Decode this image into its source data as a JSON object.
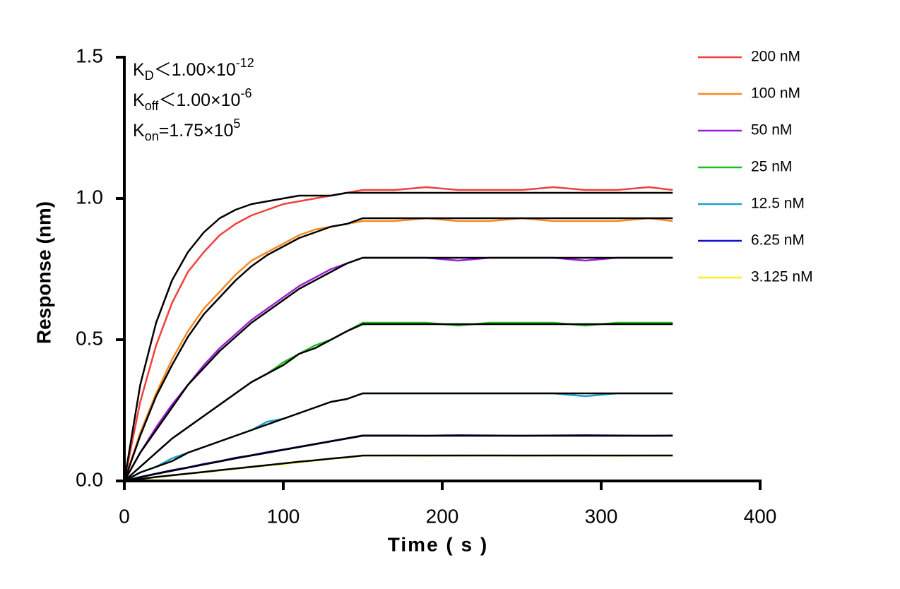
{
  "chart_data": {
    "type": "line",
    "xlabel": "Time ( s )",
    "ylabel": "Response (nm)",
    "annotations": [
      {
        "main": "K",
        "sub": "D",
        "text": "＜1.00×10",
        "sup": "-12"
      },
      {
        "main": "K",
        "sub": "off",
        "text": "＜1.00×10",
        "sup": "-6"
      },
      {
        "main": "K",
        "sub": "on",
        "text": "=1.75×10",
        "sup": "5"
      }
    ],
    "xlim": [
      0,
      400
    ],
    "xticks": [
      0,
      100,
      200,
      300,
      400
    ],
    "ylim": [
      0,
      1.5
    ],
    "yticks": [
      {
        "value": 0,
        "label": "0.0"
      },
      0.5,
      {
        "value": 1,
        "label": "1.0"
      },
      1.5
    ],
    "fit_color": "#000000",
    "x": [
      0,
      10,
      20,
      30,
      40,
      50,
      60,
      70,
      80,
      90,
      100,
      110,
      120,
      130,
      140,
      150,
      170,
      190,
      210,
      230,
      250,
      270,
      290,
      310,
      330,
      345
    ],
    "series": [
      {
        "name": "200 nM",
        "color": "#f0413c",
        "values": [
          0,
          0.28,
          0.48,
          0.63,
          0.74,
          0.81,
          0.87,
          0.91,
          0.94,
          0.96,
          0.98,
          0.99,
          1.0,
          1.01,
          1.02,
          1.03,
          1.03,
          1.04,
          1.03,
          1.03,
          1.03,
          1.04,
          1.03,
          1.03,
          1.04,
          1.03
        ],
        "fit_values": [
          0,
          0.34,
          0.56,
          0.71,
          0.81,
          0.88,
          0.93,
          0.96,
          0.98,
          0.99,
          1.0,
          1.01,
          1.01,
          1.01,
          1.02,
          1.02,
          1.02,
          1.02,
          1.02,
          1.02,
          1.02,
          1.02,
          1.02,
          1.02,
          1.02,
          1.02
        ]
      },
      {
        "name": "100 nM",
        "color": "#f6891f",
        "values": [
          0,
          0.17,
          0.31,
          0.43,
          0.53,
          0.61,
          0.67,
          0.73,
          0.78,
          0.81,
          0.84,
          0.87,
          0.89,
          0.9,
          0.91,
          0.92,
          0.92,
          0.93,
          0.92,
          0.92,
          0.93,
          0.92,
          0.92,
          0.92,
          0.93,
          0.92
        ],
        "fit_values": [
          0,
          0.16,
          0.3,
          0.41,
          0.51,
          0.59,
          0.65,
          0.71,
          0.76,
          0.8,
          0.83,
          0.86,
          0.88,
          0.9,
          0.91,
          0.93,
          0.93,
          0.93,
          0.93,
          0.93,
          0.93,
          0.93,
          0.93,
          0.93,
          0.93,
          0.93
        ]
      },
      {
        "name": "50 nM",
        "color": "#9b1fd6",
        "values": [
          0,
          0.1,
          0.19,
          0.27,
          0.34,
          0.41,
          0.47,
          0.52,
          0.57,
          0.61,
          0.65,
          0.69,
          0.72,
          0.75,
          0.77,
          0.79,
          0.79,
          0.79,
          0.78,
          0.79,
          0.79,
          0.79,
          0.78,
          0.79,
          0.79,
          0.79
        ],
        "fit_values": [
          0,
          0.1,
          0.18,
          0.26,
          0.34,
          0.4,
          0.46,
          0.51,
          0.56,
          0.6,
          0.64,
          0.68,
          0.71,
          0.74,
          0.77,
          0.79,
          0.79,
          0.79,
          0.79,
          0.79,
          0.79,
          0.79,
          0.79,
          0.79,
          0.79,
          0.79
        ]
      },
      {
        "name": "25 nM",
        "color": "#1fbf1f",
        "values": [
          0,
          0.05,
          0.1,
          0.15,
          0.19,
          0.23,
          0.27,
          0.31,
          0.35,
          0.38,
          0.42,
          0.45,
          0.48,
          0.5,
          0.53,
          0.56,
          0.56,
          0.56,
          0.55,
          0.56,
          0.56,
          0.56,
          0.55,
          0.56,
          0.56,
          0.56
        ],
        "fit_values": [
          0,
          0.05,
          0.1,
          0.15,
          0.19,
          0.23,
          0.27,
          0.31,
          0.35,
          0.38,
          0.41,
          0.45,
          0.47,
          0.5,
          0.53,
          0.555,
          0.555,
          0.555,
          0.555,
          0.555,
          0.555,
          0.555,
          0.555,
          0.555,
          0.555,
          0.555
        ]
      },
      {
        "name": "12.5 nM",
        "color": "#1fa0c8",
        "values": [
          0,
          0.03,
          0.05,
          0.08,
          0.1,
          0.12,
          0.14,
          0.16,
          0.18,
          0.21,
          0.22,
          0.24,
          0.26,
          0.28,
          0.29,
          0.31,
          0.31,
          0.31,
          0.31,
          0.31,
          0.31,
          0.31,
          0.3,
          0.31,
          0.31,
          0.31
        ],
        "fit_values": [
          0,
          0.03,
          0.05,
          0.07,
          0.1,
          0.12,
          0.14,
          0.16,
          0.18,
          0.2,
          0.22,
          0.24,
          0.26,
          0.28,
          0.29,
          0.31,
          0.31,
          0.31,
          0.31,
          0.31,
          0.31,
          0.31,
          0.31,
          0.31,
          0.31,
          0.31
        ]
      },
      {
        "name": "6.25 nM",
        "color": "#1010d0",
        "values": [
          0,
          0.014,
          0.026,
          0.038,
          0.048,
          0.06,
          0.07,
          0.082,
          0.091,
          0.102,
          0.111,
          0.121,
          0.131,
          0.141,
          0.151,
          0.161,
          0.161,
          0.16,
          0.162,
          0.161,
          0.16,
          0.161,
          0.162,
          0.161,
          0.16,
          0.161
        ],
        "fit_values": [
          0,
          0.013,
          0.025,
          0.036,
          0.047,
          0.058,
          0.069,
          0.08,
          0.09,
          0.1,
          0.11,
          0.12,
          0.13,
          0.14,
          0.15,
          0.16,
          0.16,
          0.16,
          0.16,
          0.16,
          0.16,
          0.16,
          0.16,
          0.16,
          0.16,
          0.16
        ]
      },
      {
        "name": "3.125 nM",
        "color": "#f5f01e",
        "values": [
          0,
          0.006,
          0.013,
          0.019,
          0.026,
          0.031,
          0.037,
          0.043,
          0.049,
          0.055,
          0.06,
          0.066,
          0.072,
          0.078,
          0.083,
          0.089,
          0.09,
          0.089,
          0.09,
          0.091,
          0.089,
          0.09,
          0.09,
          0.089,
          0.09,
          0.09
        ],
        "fit_values": [
          0,
          0.007,
          0.014,
          0.02,
          0.026,
          0.032,
          0.038,
          0.044,
          0.05,
          0.056,
          0.062,
          0.068,
          0.073,
          0.079,
          0.084,
          0.09,
          0.09,
          0.09,
          0.09,
          0.09,
          0.09,
          0.09,
          0.09,
          0.09,
          0.09,
          0.09
        ]
      }
    ]
  }
}
